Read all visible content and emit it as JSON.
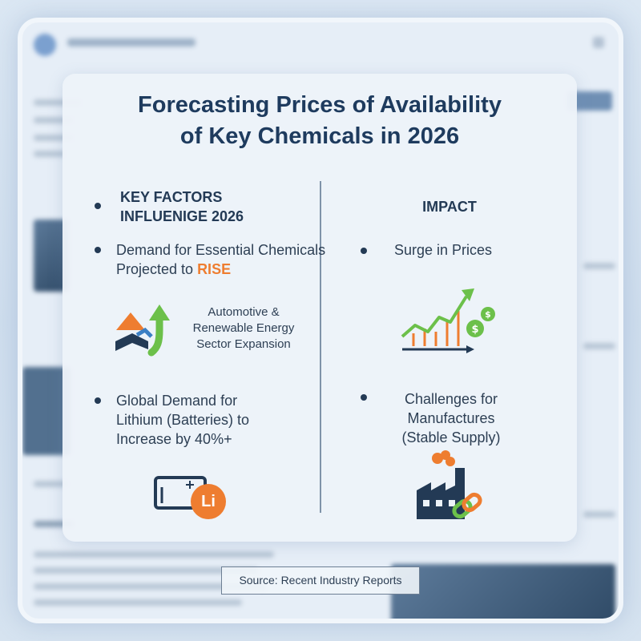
{
  "title": {
    "line1": "Forecasting Prices of Availability",
    "line2": "of Key Chemicals in 2026"
  },
  "left_column": {
    "heading_line1": "KEY FACTORS",
    "heading_line2": "INFLUENIGE 2026",
    "item1": {
      "line1": "Demand for Essential Chemicals",
      "line2_prefix": "Projected to ",
      "line2_accent": "RISE"
    },
    "sector": {
      "icon": "growth-arrows-icon",
      "line1": "Automotive &",
      "line2": "Renewable Energy",
      "line3": "Sector Expansion"
    },
    "item2": {
      "line1": "Global Demand for",
      "line2": "Lithium (Batteries) to",
      "line3": "Increase by 40%+"
    },
    "battery": {
      "icon": "lithium-battery-icon",
      "badge": "Li"
    }
  },
  "right_column": {
    "heading": "IMPACT",
    "item1": {
      "text": "Surge in Prices",
      "icon": "price-trend-chart-icon"
    },
    "item2": {
      "line1": "Challenges for",
      "line2": "Manufactures",
      "line3": "(Stable Supply)",
      "icon": "factory-chain-icon"
    }
  },
  "source": "Source: Recent Industry Reports",
  "colors": {
    "title": "#1e3b5e",
    "text": "#2d3f54",
    "accent_orange": "#ee7d30",
    "accent_green": "#6cc04a",
    "navy": "#233a55"
  }
}
